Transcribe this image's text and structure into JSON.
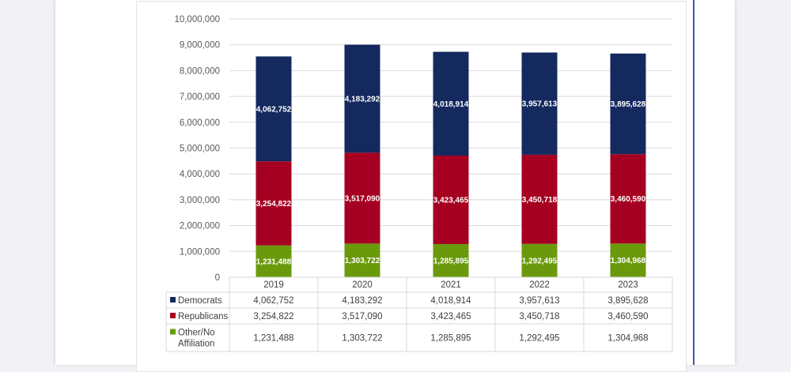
{
  "chart_data": {
    "type": "bar",
    "stacked": true,
    "title": "",
    "xlabel": "",
    "ylabel": "",
    "categories": [
      "2019",
      "2020",
      "2021",
      "2022",
      "2023"
    ],
    "series": [
      {
        "name": "Other/No Affiliation",
        "color": "#6a9a0b",
        "values": [
          1231488,
          1303722,
          1285895,
          1292495,
          1304968
        ],
        "labels": [
          "1,231,488",
          "1,303,722",
          "1,285,895",
          "1,292,495",
          "1,304,968"
        ]
      },
      {
        "name": "Republicans",
        "color": "#a50021",
        "values": [
          3254822,
          3517090,
          3423465,
          3450718,
          3460590
        ],
        "labels": [
          "3,254,822",
          "3,517,090",
          "3,423,465",
          "3,450,718",
          "3,460,590"
        ]
      },
      {
        "name": "Democrats",
        "color": "#14295e",
        "values": [
          4062752,
          4183292,
          4018914,
          3957613,
          3895628
        ],
        "labels": [
          "4,062,752",
          "4,183,292",
          "4,018,914",
          "3,957,613",
          "3,895,628"
        ]
      }
    ],
    "ylim": [
      0,
      10000000
    ],
    "yticks": [
      0,
      1000000,
      2000000,
      3000000,
      4000000,
      5000000,
      6000000,
      7000000,
      8000000,
      9000000,
      10000000
    ],
    "ytick_labels": [
      "0",
      "1,000,000",
      "2,000,000",
      "3,000,000",
      "4,000,000",
      "5,000,000",
      "6,000,000",
      "7,000,000",
      "8,000,000",
      "9,000,000",
      "10,000,000"
    ],
    "grid": true,
    "legend": "data-table-below",
    "data_table": {
      "rows": [
        {
          "name": "Democrats",
          "color": "#14295e",
          "label_lines": [
            "Democrats"
          ],
          "cells": [
            "4,062,752",
            "4,183,292",
            "4,018,914",
            "3,957,613",
            "3,895,628"
          ]
        },
        {
          "name": "Republicans",
          "color": "#a50021",
          "label_lines": [
            "Republicans"
          ],
          "cells": [
            "3,254,822",
            "3,517,090",
            "3,423,465",
            "3,450,718",
            "3,460,590"
          ]
        },
        {
          "name": "Other/No Affiliation",
          "color": "#6a9a0b",
          "label_lines": [
            "Other/No",
            "Affiliation"
          ],
          "cells": [
            "1,231,488",
            "1,303,722",
            "1,285,895",
            "1,292,495",
            "1,304,968"
          ]
        }
      ]
    }
  },
  "colors": {
    "gridline": "#d9d9d9",
    "axis_text": "#595959",
    "table_border": "#d9d9d9",
    "page_rule": "#3a5aa8"
  }
}
